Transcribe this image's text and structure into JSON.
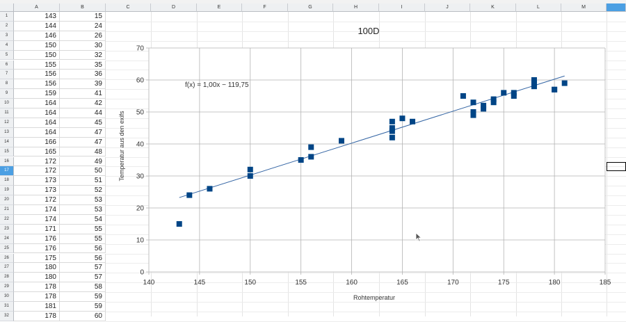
{
  "columns": [
    "A",
    "B",
    "C",
    "D",
    "E",
    "F",
    "G",
    "H",
    "I",
    "J",
    "K",
    "L",
    "M"
  ],
  "selected_row": "17",
  "rows": [
    {
      "num": "1",
      "a": "143",
      "b": "15"
    },
    {
      "num": "2",
      "a": "144",
      "b": "24"
    },
    {
      "num": "3",
      "a": "146",
      "b": "26"
    },
    {
      "num": "4",
      "a": "150",
      "b": "30"
    },
    {
      "num": "5",
      "a": "150",
      "b": "32"
    },
    {
      "num": "6",
      "a": "155",
      "b": "35"
    },
    {
      "num": "7",
      "a": "156",
      "b": "36"
    },
    {
      "num": "8",
      "a": "156",
      "b": "39"
    },
    {
      "num": "9",
      "a": "159",
      "b": "41"
    },
    {
      "num": "10",
      "a": "164",
      "b": "42"
    },
    {
      "num": "11",
      "a": "164",
      "b": "44"
    },
    {
      "num": "12",
      "a": "164",
      "b": "45"
    },
    {
      "num": "13",
      "a": "164",
      "b": "47"
    },
    {
      "num": "14",
      "a": "166",
      "b": "47"
    },
    {
      "num": "15",
      "a": "165",
      "b": "48"
    },
    {
      "num": "16",
      "a": "172",
      "b": "49"
    },
    {
      "num": "17",
      "a": "172",
      "b": "50"
    },
    {
      "num": "18",
      "a": "173",
      "b": "51"
    },
    {
      "num": "19",
      "a": "173",
      "b": "52"
    },
    {
      "num": "20",
      "a": "172",
      "b": "53"
    },
    {
      "num": "21",
      "a": "174",
      "b": "53"
    },
    {
      "num": "22",
      "a": "174",
      "b": "54"
    },
    {
      "num": "23",
      "a": "171",
      "b": "55"
    },
    {
      "num": "24",
      "a": "176",
      "b": "55"
    },
    {
      "num": "25",
      "a": "176",
      "b": "56"
    },
    {
      "num": "26",
      "a": "175",
      "b": "56"
    },
    {
      "num": "27",
      "a": "180",
      "b": "57"
    },
    {
      "num": "28",
      "a": "180",
      "b": "57"
    },
    {
      "num": "29",
      "a": "178",
      "b": "58"
    },
    {
      "num": "30",
      "a": "178",
      "b": "59"
    },
    {
      "num": "31",
      "a": "181",
      "b": "59"
    },
    {
      "num": "32",
      "a": "178",
      "b": "60"
    }
  ],
  "chart_data": {
    "type": "scatter",
    "title": "100D",
    "xlabel": "Rohtemperatur",
    "ylabel": "Temperatur aus den exifs",
    "xlim": [
      140,
      185
    ],
    "ylim": [
      0,
      70
    ],
    "xticks": [
      "140",
      "145",
      "150",
      "155",
      "160",
      "165",
      "170",
      "175",
      "180",
      "185"
    ],
    "yticks": [
      "0",
      "10",
      "20",
      "30",
      "40",
      "50",
      "60",
      "70"
    ],
    "grid": true,
    "marker_color": "#004586",
    "line_color": "#3465a4",
    "trendline": {
      "slope": 1.0,
      "intercept": -119.75,
      "x": [
        143,
        181
      ]
    },
    "equation": "f(x) = 1,00x − 119,75",
    "points": [
      [
        143,
        15
      ],
      [
        144,
        24
      ],
      [
        146,
        26
      ],
      [
        150,
        30
      ],
      [
        150,
        32
      ],
      [
        155,
        35
      ],
      [
        156,
        36
      ],
      [
        156,
        39
      ],
      [
        159,
        41
      ],
      [
        164,
        42
      ],
      [
        164,
        44
      ],
      [
        164,
        45
      ],
      [
        164,
        47
      ],
      [
        166,
        47
      ],
      [
        165,
        48
      ],
      [
        172,
        49
      ],
      [
        172,
        50
      ],
      [
        173,
        51
      ],
      [
        173,
        52
      ],
      [
        172,
        53
      ],
      [
        174,
        53
      ],
      [
        174,
        54
      ],
      [
        171,
        55
      ],
      [
        176,
        55
      ],
      [
        176,
        56
      ],
      [
        175,
        56
      ],
      [
        180,
        57
      ],
      [
        180,
        57
      ],
      [
        178,
        58
      ],
      [
        178,
        59
      ],
      [
        181,
        59
      ],
      [
        178,
        60
      ]
    ]
  }
}
